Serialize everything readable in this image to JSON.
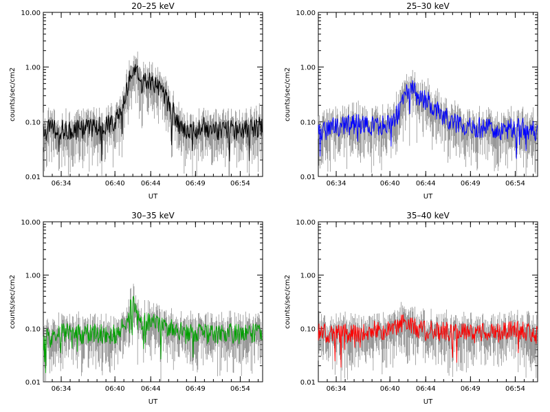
{
  "chart_data": [
    {
      "type": "line",
      "title": "20–25 keV",
      "xlabel": "UT",
      "ylabel": "counts/sec/cm2",
      "yscale": "log",
      "ylim": [
        0.01,
        10.0
      ],
      "xlim": [
        "06:32:00",
        "06:56:30"
      ],
      "x_ticks": [
        "06:34",
        "06:40",
        "06:44",
        "06:49",
        "06:54"
      ],
      "y_ticks": [
        "0.01",
        "0.10",
        "1.00",
        "10.00"
      ],
      "grid": false,
      "error_bars": true,
      "series_color": "#000000",
      "errorbar_color": "#808080",
      "series": [
        {
          "x": [
            "06:32",
            "06:34",
            "06:36",
            "06:38",
            "06:40",
            "06:41",
            "06:41:30",
            "06:42",
            "06:43",
            "06:44",
            "06:45",
            "06:46",
            "06:47",
            "06:48",
            "06:50",
            "06:52",
            "06:54",
            "06:56"
          ],
          "values": [
            0.07,
            0.07,
            0.07,
            0.08,
            0.09,
            0.2,
            0.5,
            1.0,
            0.5,
            0.55,
            0.4,
            0.2,
            0.1,
            0.07,
            0.08,
            0.07,
            0.07,
            0.08
          ]
        }
      ]
    },
    {
      "type": "line",
      "title": "25–30 keV",
      "xlabel": "UT",
      "ylabel": "counts/sec/cm2",
      "yscale": "log",
      "ylim": [
        0.01,
        10.0
      ],
      "xlim": [
        "06:32:00",
        "06:56:30"
      ],
      "x_ticks": [
        "06:34",
        "06:40",
        "06:44",
        "06:49",
        "06:54"
      ],
      "y_ticks": [
        "0.01",
        "0.10",
        "1.00",
        "10.00"
      ],
      "grid": false,
      "error_bars": true,
      "series_color": "#0000ff",
      "errorbar_color": "#808080",
      "series": [
        {
          "x": [
            "06:32",
            "06:34",
            "06:36",
            "06:38",
            "06:40",
            "06:41",
            "06:41:30",
            "06:42",
            "06:43",
            "06:44",
            "06:45",
            "06:46",
            "06:47",
            "06:48",
            "06:50",
            "06:52",
            "06:54",
            "06:56"
          ],
          "values": [
            0.06,
            0.08,
            0.09,
            0.08,
            0.1,
            0.14,
            0.3,
            0.55,
            0.3,
            0.25,
            0.17,
            0.12,
            0.1,
            0.08,
            0.08,
            0.07,
            0.08,
            0.07
          ]
        }
      ]
    },
    {
      "type": "line",
      "title": "30–35 keV",
      "xlabel": "UT",
      "ylabel": "counts/sec/cm2",
      "yscale": "log",
      "ylim": [
        0.01,
        10.0
      ],
      "xlim": [
        "06:32:00",
        "06:56:30"
      ],
      "x_ticks": [
        "06:34",
        "06:40",
        "06:44",
        "06:49",
        "06:54"
      ],
      "y_ticks": [
        "0.01",
        "0.10",
        "1.00",
        "10.00"
      ],
      "grid": false,
      "error_bars": true,
      "series_color": "#00a000",
      "errorbar_color": "#808080",
      "series": [
        {
          "x": [
            "06:32",
            "06:34",
            "06:36",
            "06:38",
            "06:40",
            "06:41",
            "06:41:30",
            "06:42",
            "06:43",
            "06:44",
            "06:45",
            "06:46",
            "06:47",
            "06:48",
            "06:50",
            "06:52",
            "06:54",
            "06:56"
          ],
          "values": [
            0.06,
            0.08,
            0.08,
            0.08,
            0.08,
            0.11,
            0.2,
            0.28,
            0.14,
            0.12,
            0.12,
            0.1,
            0.09,
            0.08,
            0.08,
            0.08,
            0.08,
            0.08
          ]
        }
      ]
    },
    {
      "type": "line",
      "title": "35–40 keV",
      "xlabel": "UT",
      "ylabel": "counts/sec/cm2",
      "yscale": "log",
      "ylim": [
        0.01,
        10.0
      ],
      "xlim": [
        "06:32:00",
        "06:56:30"
      ],
      "x_ticks": [
        "06:34",
        "06:40",
        "06:44",
        "06:49",
        "06:54"
      ],
      "y_ticks": [
        "0.01",
        "0.10",
        "1.00",
        "10.00"
      ],
      "grid": false,
      "error_bars": true,
      "series_color": "#ff0000",
      "errorbar_color": "#808080",
      "series": [
        {
          "x": [
            "06:32",
            "06:34",
            "06:36",
            "06:38",
            "06:40",
            "06:41",
            "06:41:30",
            "06:42",
            "06:43",
            "06:44",
            "06:45",
            "06:46",
            "06:47",
            "06:48",
            "06:50",
            "06:52",
            "06:54",
            "06:56"
          ],
          "values": [
            0.08,
            0.08,
            0.08,
            0.09,
            0.09,
            0.11,
            0.12,
            0.12,
            0.1,
            0.09,
            0.09,
            0.09,
            0.08,
            0.08,
            0.08,
            0.08,
            0.09,
            0.08
          ]
        }
      ]
    }
  ]
}
